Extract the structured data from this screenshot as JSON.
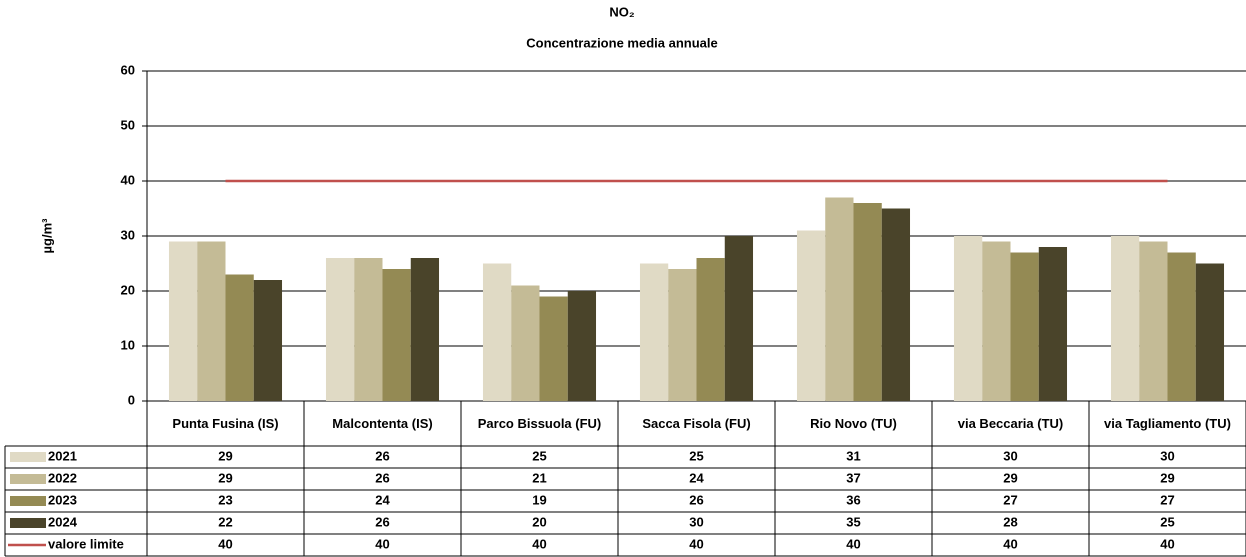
{
  "chart_data": {
    "type": "bar",
    "title": "NO₂",
    "subtitle": "Concentrazione media annuale",
    "y_label": "µg/m³",
    "categories": [
      "Punta Fusina (IS)",
      "Malcontenta (IS)",
      "Parco Bissuola (FU)",
      "Sacca Fisola (FU)",
      "Rio Novo (TU)",
      "via Beccaria (TU)",
      "via Tagliamento (TU)"
    ],
    "series": [
      {
        "name": "2021",
        "color": "#e0dac5",
        "values": [
          29,
          26,
          25,
          25,
          31,
          30,
          30
        ]
      },
      {
        "name": "2022",
        "color": "#c4bb96",
        "values": [
          29,
          26,
          21,
          24,
          37,
          29,
          29
        ]
      },
      {
        "name": "2023",
        "color": "#948a54",
        "values": [
          23,
          24,
          19,
          26,
          36,
          27,
          27
        ]
      },
      {
        "name": "2024",
        "color": "#4a442a",
        "values": [
          22,
          26,
          20,
          30,
          35,
          28,
          25
        ]
      },
      {
        "name": "valore limite",
        "type": "line",
        "color": "#c0504d",
        "values": [
          40,
          40,
          40,
          40,
          40,
          40,
          40
        ]
      }
    ],
    "ylim": [
      0,
      60
    ],
    "yticks": [
      0,
      10,
      20,
      30,
      40,
      50,
      60
    ],
    "grid": true
  }
}
